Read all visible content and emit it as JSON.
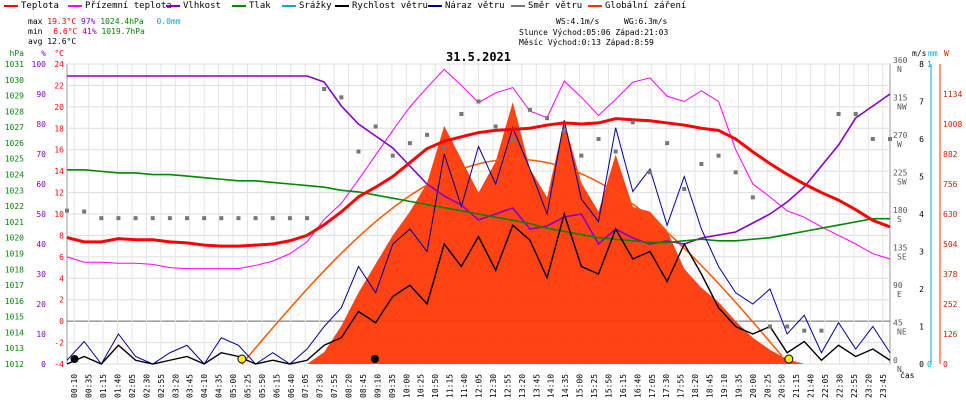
{
  "legend": [
    {
      "label": "Teplota",
      "color": "#ff0000"
    },
    {
      "label": "Přízemní teplota",
      "color": "#ff00ff"
    },
    {
      "label": "Vlhkost",
      "color": "#8800cc"
    },
    {
      "label": "Tlak",
      "color": "#008800"
    },
    {
      "label": "Srážky",
      "color": "#00aacc"
    },
    {
      "label": "Rychlost větru",
      "color": "#000000"
    },
    {
      "label": "Náraz větru",
      "color": "#000099"
    },
    {
      "label": "Směr větru",
      "color": "#777777"
    },
    {
      "label": "Globální záření",
      "color": "#ff3300"
    }
  ],
  "stats": {
    "max": {
      "label": "max",
      "temp": "19.3°C",
      "hum": "97%",
      "press": "1024.4hPa",
      "rain": "0.0mm"
    },
    "min": {
      "label": "min",
      "temp": "6.6°C",
      "hum": "41%",
      "press": "1019.7hPa"
    },
    "avg": {
      "label": "avg",
      "temp": "12.6°C"
    },
    "ws": "WS:4.1m/s",
    "wg": "WG:6.3m/s",
    "sun": "Slunce Východ:05:06   Západ:21:03",
    "moon": "Měsíc  Východ:0:13    Západ:8:59"
  },
  "chart_data": {
    "type": "line",
    "title": "31.5.2021",
    "x_unit": "čas",
    "time_labels": [
      "00:10",
      "00:35",
      "01:15",
      "01:40",
      "02:05",
      "02:30",
      "02:55",
      "03:20",
      "03:45",
      "04:10",
      "04:35",
      "05:00",
      "05:25",
      "05:50",
      "06:15",
      "06:40",
      "07:05",
      "07:30",
      "07:55",
      "08:20",
      "08:45",
      "09:10",
      "09:35",
      "10:00",
      "10:25",
      "10:50",
      "11:15",
      "11:40",
      "12:05",
      "12:30",
      "12:55",
      "13:20",
      "13:45",
      "14:10",
      "14:35",
      "15:00",
      "15:25",
      "15:50",
      "16:15",
      "16:40",
      "17:05",
      "17:30",
      "17:55",
      "18:20",
      "18:45",
      "19:10",
      "19:35",
      "20:00",
      "20:25",
      "20:50",
      "21:15",
      "21:40",
      "22:05",
      "22:30",
      "22:55",
      "23:20",
      "23:45"
    ],
    "axes": {
      "pressure": {
        "label": "hPa",
        "color": "#008800",
        "ticks": [
          1031,
          1030,
          1029,
          1028,
          1027,
          1026,
          1025,
          1024,
          1023,
          1022,
          1021,
          1020,
          1019,
          1018,
          1017,
          1016,
          1015,
          1014,
          1013,
          1012
        ],
        "range": [
          1012,
          1031
        ]
      },
      "humidity": {
        "label": "%",
        "color": "#8800cc",
        "ticks": [
          100,
          90,
          80,
          70,
          60,
          50,
          40,
          30,
          20,
          10,
          0
        ],
        "range": [
          0,
          100
        ]
      },
      "temperature": {
        "label": "°C",
        "color": "#ff0000",
        "ticks": [
          24,
          22,
          20,
          18,
          16,
          14,
          12,
          10,
          8,
          6,
          4,
          2,
          0,
          -2,
          -4
        ],
        "range": [
          -4,
          24
        ]
      },
      "wind_dir": {
        "label": "°",
        "color": "#555555",
        "ticks": [
          "360 N",
          "315 NW",
          "270 W",
          "225 SW",
          "180 S",
          "135 SE",
          "90 E",
          "45 NE",
          "0 N"
        ],
        "range": [
          0,
          360
        ]
      },
      "wind_speed": {
        "label": "m/s",
        "color": "#000000",
        "ticks": [
          8,
          7,
          6,
          5,
          4,
          3,
          2,
          1,
          0
        ],
        "range": [
          0,
          8
        ]
      },
      "rain": {
        "label": "mm",
        "color": "#00aacc",
        "ticks": [
          1,
          0
        ],
        "range": [
          0,
          1
        ]
      },
      "radiation": {
        "label": "W",
        "color": "#cc2200",
        "ticks": [
          1134,
          1008,
          882,
          756,
          630,
          504,
          378,
          252,
          126,
          0
        ],
        "range": [
          0,
          1260
        ]
      }
    },
    "series": [
      {
        "name": "Teplota",
        "unit": "°C",
        "color": "#ff0000",
        "x": [
          0,
          0.5,
          1,
          1.5,
          2,
          2.5,
          3,
          3.5,
          4,
          4.5,
          5,
          5.5,
          6,
          6.5,
          7,
          7.5,
          8,
          8.5,
          9,
          9.5,
          10,
          10.5,
          11,
          11.5,
          12,
          12.5,
          13,
          13.5,
          14,
          14.5,
          15,
          15.5,
          16,
          16.5,
          17,
          17.5,
          18,
          18.5,
          19,
          19.5,
          20,
          20.5,
          21,
          21.5,
          22,
          22.5,
          23,
          23.5,
          24
        ],
        "y": [
          7.8,
          7.4,
          7.4,
          7.7,
          7.6,
          7.6,
          7.4,
          7.3,
          7.1,
          7.0,
          7.0,
          7.1,
          7.2,
          7.5,
          8.0,
          9.0,
          10.2,
          11.6,
          12.5,
          13.5,
          14.8,
          16.1,
          16.8,
          17.2,
          17.6,
          17.8,
          17.9,
          18.0,
          18.3,
          18.5,
          18.4,
          18.5,
          18.9,
          18.8,
          18.7,
          18.5,
          18.3,
          18.0,
          17.8,
          17.0,
          15.8,
          14.7,
          13.7,
          12.8,
          12.0,
          11.3,
          10.4,
          9.4,
          8.8
        ]
      },
      {
        "name": "Přízemní teplota",
        "unit": "°C",
        "color": "#ff00ff",
        "x": [
          0,
          0.5,
          1,
          1.5,
          2,
          2.5,
          3,
          3.5,
          4,
          4.5,
          5,
          5.5,
          6,
          6.5,
          7,
          7.5,
          8,
          8.5,
          9,
          9.5,
          10,
          10.5,
          11,
          11.5,
          12,
          12.5,
          13,
          13.5,
          14,
          14.5,
          15,
          15.5,
          16,
          16.5,
          17,
          17.5,
          18,
          18.5,
          19,
          19.5,
          20,
          20.5,
          21,
          21.5,
          22,
          22.5,
          23,
          23.5,
          24
        ],
        "y": [
          6.0,
          5.5,
          5.5,
          5.4,
          5.4,
          5.3,
          5.0,
          4.9,
          4.9,
          4.9,
          4.9,
          5.2,
          5.6,
          6.3,
          7.4,
          9.5,
          11.0,
          13.2,
          15.5,
          17.8,
          20.0,
          21.8,
          23.5,
          22.0,
          20.4,
          21.3,
          21.8,
          19.6,
          19.0,
          22.4,
          20.9,
          19.2,
          20.7,
          22.3,
          22.7,
          21.0,
          20.5,
          21.5,
          20.5,
          16.0,
          12.8,
          11.6,
          10.3,
          9.7,
          8.8,
          8.0,
          7.2,
          6.3,
          5.8
        ]
      },
      {
        "name": "Vlhkost",
        "unit": "%",
        "color": "#8800cc",
        "x": [
          0,
          0.5,
          1,
          1.5,
          2,
          2.5,
          3,
          3.5,
          4,
          4.5,
          5,
          5.5,
          6,
          6.5,
          7,
          7.5,
          8,
          8.5,
          9,
          9.5,
          10,
          10.5,
          11,
          11.5,
          12,
          12.5,
          13,
          13.5,
          14,
          14.5,
          15,
          15.5,
          16,
          16.5,
          17,
          17.5,
          18,
          18.5,
          19,
          19.5,
          20,
          20.5,
          21,
          21.5,
          22,
          22.5,
          23,
          23.5,
          24
        ],
        "y": [
          96,
          96,
          96,
          96,
          96,
          96,
          96,
          96,
          96,
          96,
          96,
          96,
          96,
          96,
          96,
          94,
          86,
          80,
          76,
          72,
          66,
          60,
          56,
          53,
          48,
          50,
          52,
          45,
          46,
          49,
          50,
          40,
          45,
          42,
          40,
          41,
          40,
          42,
          43,
          44,
          47,
          50,
          54,
          59,
          66,
          73,
          82,
          86,
          90
        ]
      },
      {
        "name": "Tlak",
        "unit": "hPa",
        "color": "#008800",
        "x": [
          0,
          0.5,
          1,
          1.5,
          2,
          2.5,
          3,
          3.5,
          4,
          4.5,
          5,
          5.5,
          6,
          6.5,
          7,
          7.5,
          8,
          8.5,
          9,
          9.5,
          10,
          10.5,
          11,
          11.5,
          12,
          12.5,
          13,
          13.5,
          14,
          14.5,
          15,
          15.5,
          16,
          16.5,
          17,
          17.5,
          18,
          18.5,
          19,
          19.5,
          20,
          20.5,
          21,
          21.5,
          22,
          22.5,
          23,
          23.5,
          24
        ],
        "y": [
          1024.3,
          1024.3,
          1024.2,
          1024.1,
          1024.1,
          1024.0,
          1024.0,
          1023.9,
          1023.8,
          1023.7,
          1023.6,
          1023.6,
          1023.5,
          1023.4,
          1023.3,
          1023.2,
          1023.0,
          1022.9,
          1022.7,
          1022.5,
          1022.3,
          1022.1,
          1021.9,
          1021.7,
          1021.5,
          1021.3,
          1021.1,
          1020.9,
          1020.6,
          1020.4,
          1020.2,
          1020.0,
          1019.9,
          1019.8,
          1019.7,
          1019.7,
          1019.8,
          1019.9,
          1019.8,
          1019.8,
          1019.9,
          1020.0,
          1020.2,
          1020.4,
          1020.6,
          1020.8,
          1021.0,
          1021.2,
          1021.2
        ]
      },
      {
        "name": "Rychlost větru",
        "unit": "m/s",
        "color": "#000000",
        "x": [
          0,
          0.5,
          1,
          1.5,
          2,
          2.5,
          3,
          3.5,
          4,
          4.5,
          5,
          5.5,
          6,
          6.5,
          7,
          7.5,
          8,
          8.5,
          9,
          9.5,
          10,
          10.5,
          11,
          11.5,
          12,
          12.5,
          13,
          13.5,
          14,
          14.5,
          15,
          15.5,
          16,
          16.5,
          17,
          17.5,
          18,
          18.5,
          19,
          19.5,
          20,
          20.5,
          21,
          21.5,
          22,
          22.5,
          23,
          23.5,
          24
        ],
        "y": [
          0.0,
          0.2,
          0.0,
          0.5,
          0.1,
          0.0,
          0.1,
          0.2,
          0.0,
          0.3,
          0.2,
          0.0,
          0.1,
          0.0,
          0.1,
          0.5,
          0.7,
          1.4,
          1.1,
          1.8,
          2.1,
          1.6,
          3.2,
          2.6,
          3.4,
          2.5,
          3.7,
          3.3,
          2.3,
          4.0,
          2.6,
          2.4,
          3.6,
          2.8,
          3.0,
          2.2,
          3.2,
          2.4,
          1.5,
          1.0,
          0.8,
          1.0,
          0.3,
          0.6,
          0.1,
          0.5,
          0.2,
          0.4,
          0.1
        ]
      },
      {
        "name": "Náraz větru",
        "unit": "m/s",
        "color": "#000099",
        "x": [
          0,
          0.5,
          1,
          1.5,
          2,
          2.5,
          3,
          3.5,
          4,
          4.5,
          5,
          5.5,
          6,
          6.5,
          7,
          7.5,
          8,
          8.5,
          9,
          9.5,
          10,
          10.5,
          11,
          11.5,
          12,
          12.5,
          13,
          13.5,
          14,
          14.5,
          15,
          15.5,
          16,
          16.5,
          17,
          17.5,
          18,
          18.5,
          19,
          19.5,
          20,
          20.5,
          21,
          21.5,
          22,
          22.5,
          23,
          23.5,
          24
        ],
        "y": [
          0.1,
          0.6,
          0.0,
          0.8,
          0.2,
          0.0,
          0.3,
          0.5,
          0.0,
          0.7,
          0.5,
          0.0,
          0.3,
          0.0,
          0.4,
          1.0,
          1.5,
          2.6,
          1.9,
          3.2,
          3.6,
          3.0,
          5.6,
          4.2,
          5.8,
          4.8,
          6.3,
          5.2,
          4.0,
          6.5,
          4.4,
          3.8,
          6.3,
          4.6,
          5.2,
          3.7,
          5.0,
          3.6,
          2.6,
          1.9,
          1.6,
          2.0,
          0.8,
          1.3,
          0.3,
          1.1,
          0.4,
          1.0,
          0.3
        ]
      },
      {
        "name": "Směr větru",
        "unit": "°",
        "color": "#777777",
        "x": [
          0,
          0.5,
          1,
          1.5,
          2,
          2.5,
          3,
          3.5,
          4,
          4.5,
          5,
          5.5,
          6,
          6.5,
          7,
          7.5,
          8,
          8.5,
          9,
          9.5,
          10,
          10.5,
          11,
          11.5,
          12,
          12.5,
          13,
          13.5,
          14,
          14.5,
          15,
          15.5,
          16,
          16.5,
          17,
          17.5,
          18,
          18.5,
          19,
          19.5,
          20,
          20.5,
          21,
          21.5,
          22,
          22.5,
          23,
          23.5,
          24
        ],
        "y": [
          184,
          183,
          175,
          175,
          175,
          175,
          175,
          175,
          175,
          175,
          175,
          175,
          175,
          175,
          175,
          330,
          320,
          255,
          285,
          250,
          265,
          275,
          260,
          300,
          315,
          285,
          270,
          305,
          295,
          280,
          250,
          270,
          255,
          290,
          230,
          265,
          210,
          240,
          250,
          230,
          200,
          45,
          45,
          40,
          40,
          300,
          300,
          270,
          270
        ]
      },
      {
        "name": "Globální záření",
        "unit": "W",
        "color": "#ff3300",
        "x": [
          0,
          0.5,
          1,
          1.5,
          2,
          2.5,
          3,
          3.5,
          4,
          4.5,
          5,
          5.5,
          6,
          6.5,
          7,
          7.5,
          8,
          8.5,
          9,
          9.5,
          10,
          10.5,
          11,
          11.5,
          12,
          12.5,
          13,
          13.5,
          14,
          14.5,
          15,
          15.5,
          16,
          16.5,
          17,
          17.5,
          18,
          18.5,
          19,
          19.5,
          20,
          20.5,
          21,
          21.5,
          22,
          22.5,
          23,
          23.5,
          24
        ],
        "y": [
          0,
          0,
          0,
          0,
          0,
          0,
          0,
          0,
          0,
          0,
          0,
          0,
          0,
          0,
          0,
          50,
          160,
          300,
          420,
          540,
          640,
          760,
          1000,
          860,
          720,
          850,
          1100,
          820,
          700,
          1020,
          760,
          640,
          880,
          660,
          640,
          560,
          400,
          320,
          260,
          180,
          110,
          60,
          20,
          0,
          0,
          0,
          0,
          0,
          0
        ]
      }
    ]
  }
}
